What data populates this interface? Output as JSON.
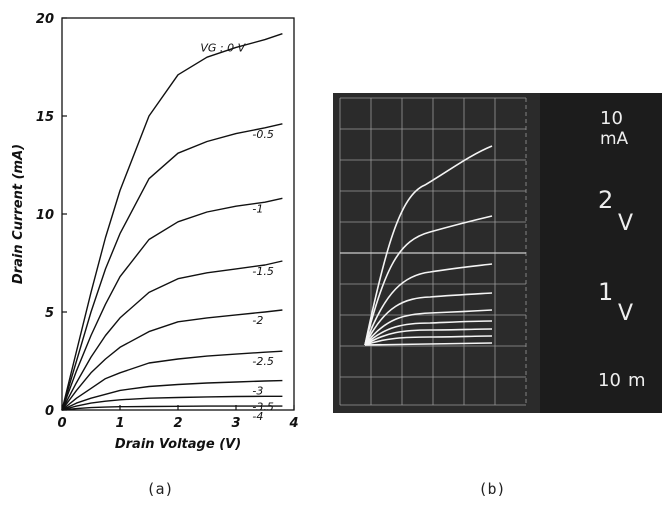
{
  "chart_data": {
    "type": "line",
    "x_label": "Drain Voltage (V)",
    "y_label": "Drain Current (mA)",
    "x": [
      0,
      0.25,
      0.5,
      0.75,
      1,
      1.5,
      2,
      2.5,
      3,
      3.5,
      3.8
    ],
    "series": [
      {
        "name": "VG : 0 V",
        "color": "#111111",
        "values": [
          0,
          3,
          6,
          8.8,
          11.2,
          15,
          17.1,
          18,
          18.5,
          18.9,
          19.2
        ]
      },
      {
        "name": "-0.5",
        "color": "#111111",
        "values": [
          0,
          2.5,
          5,
          7.2,
          9,
          11.8,
          13.1,
          13.7,
          14.1,
          14.4,
          14.6
        ]
      },
      {
        "name": "-1",
        "color": "#111111",
        "values": [
          0,
          2,
          3.8,
          5.4,
          6.8,
          8.7,
          9.6,
          10.1,
          10.4,
          10.6,
          10.8
        ]
      },
      {
        "name": "-1.5",
        "color": "#111111",
        "values": [
          0,
          1.4,
          2.7,
          3.8,
          4.7,
          6,
          6.7,
          7,
          7.2,
          7.4,
          7.6
        ]
      },
      {
        "name": "-2",
        "color": "#111111",
        "values": [
          0,
          1,
          1.9,
          2.6,
          3.2,
          4,
          4.5,
          4.7,
          4.85,
          5,
          5.1
        ]
      },
      {
        "name": "-2.5",
        "color": "#111111",
        "values": [
          0,
          0.6,
          1.1,
          1.6,
          1.9,
          2.4,
          2.6,
          2.75,
          2.85,
          2.95,
          3
        ]
      },
      {
        "name": "-3",
        "color": "#111111",
        "values": [
          0,
          0.35,
          0.6,
          0.8,
          1,
          1.2,
          1.3,
          1.38,
          1.43,
          1.48,
          1.5
        ]
      },
      {
        "name": "-3.5",
        "color": "#111111",
        "values": [
          0,
          0.2,
          0.35,
          0.45,
          0.52,
          0.6,
          0.64,
          0.67,
          0.69,
          0.7,
          0.7
        ]
      },
      {
        "name": "-4",
        "color": "#111111",
        "values": [
          0,
          0.07,
          0.12,
          0.15,
          0.17,
          0.18,
          0.19,
          0.2,
          0.2,
          0.2,
          0.2
        ]
      }
    ],
    "xlim": [
      0,
      4
    ],
    "xticks": [
      0,
      1,
      2,
      3,
      4
    ],
    "ylim": [
      0,
      20
    ],
    "yticks": [
      0,
      5,
      10,
      15,
      20
    ]
  },
  "scope": {
    "readouts": [
      {
        "value": "10",
        "unit": "mA"
      },
      {
        "value": "2",
        "unit": "V"
      },
      {
        "value": "1",
        "unit": "V"
      },
      {
        "value": "10",
        "unit": "m"
      }
    ]
  },
  "captions": [
    "(a)",
    "(b)"
  ]
}
